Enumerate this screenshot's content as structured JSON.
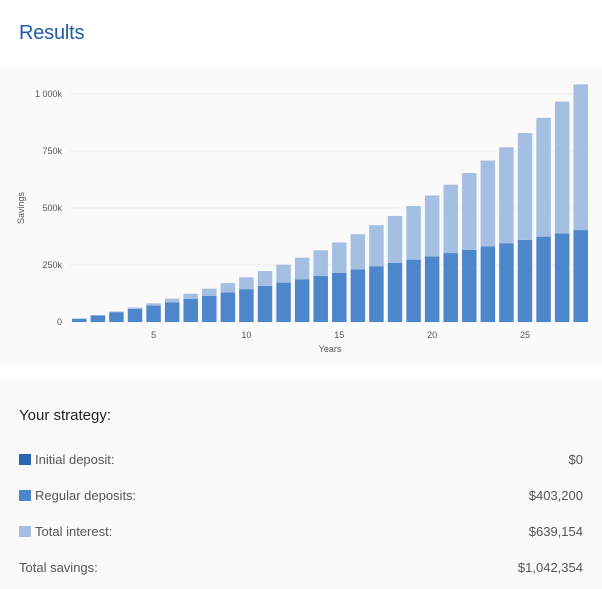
{
  "title": "Results",
  "strategy": {
    "title": "Your strategy:",
    "rows": [
      {
        "label": "Initial deposit:",
        "value": "$0",
        "color": "#2c64ad"
      },
      {
        "label": "Regular deposits:",
        "value": "$403,200",
        "color": "#4d86cb"
      },
      {
        "label": "Total interest:",
        "value": "$639,154",
        "color": "#a5bfe3"
      }
    ],
    "total": {
      "label": "Total savings:",
      "value": "$1,042,354"
    }
  },
  "chart_data": {
    "type": "bar",
    "stacked": true,
    "xlabel": "Years",
    "ylabel": "Savings",
    "ylim": [
      0,
      1000000
    ],
    "y_ticks": [
      0,
      250000,
      500000,
      750000,
      1000000
    ],
    "y_tick_labels": [
      "0",
      "250k",
      "500k",
      "750k",
      "1 000k"
    ],
    "x_ticks": [
      5,
      10,
      15,
      20,
      25
    ],
    "grid": true,
    "categories": [
      1,
      2,
      3,
      4,
      5,
      6,
      7,
      8,
      9,
      10,
      11,
      12,
      13,
      14,
      15,
      16,
      17,
      18,
      19,
      20,
      21,
      22,
      23,
      24,
      25,
      26,
      27,
      28
    ],
    "series": [
      {
        "color": "#4d86cb",
        "values": [
          14400,
          28800,
          43200,
          57600,
          72000,
          86400,
          100800,
          115200,
          129600,
          144000,
          158400,
          172800,
          187200,
          201600,
          216000,
          230400,
          244800,
          259200,
          273600,
          288000,
          302400,
          316800,
          331200,
          345600,
          360000,
          374400,
          388800,
          403200
        ]
      },
      {
        "color": "#a5bfe3",
        "values": [
          0,
          1000,
          3000,
          6000,
          10000,
          16000,
          23000,
          31000,
          41000,
          52000,
          65000,
          79000,
          95000,
          113000,
          133000,
          155000,
          180000,
          206000,
          235000,
          267000,
          300000,
          337000,
          377000,
          421000,
          469000,
          521000,
          578000,
          639154
        ]
      }
    ],
    "grid_color": "#eeeeee"
  }
}
